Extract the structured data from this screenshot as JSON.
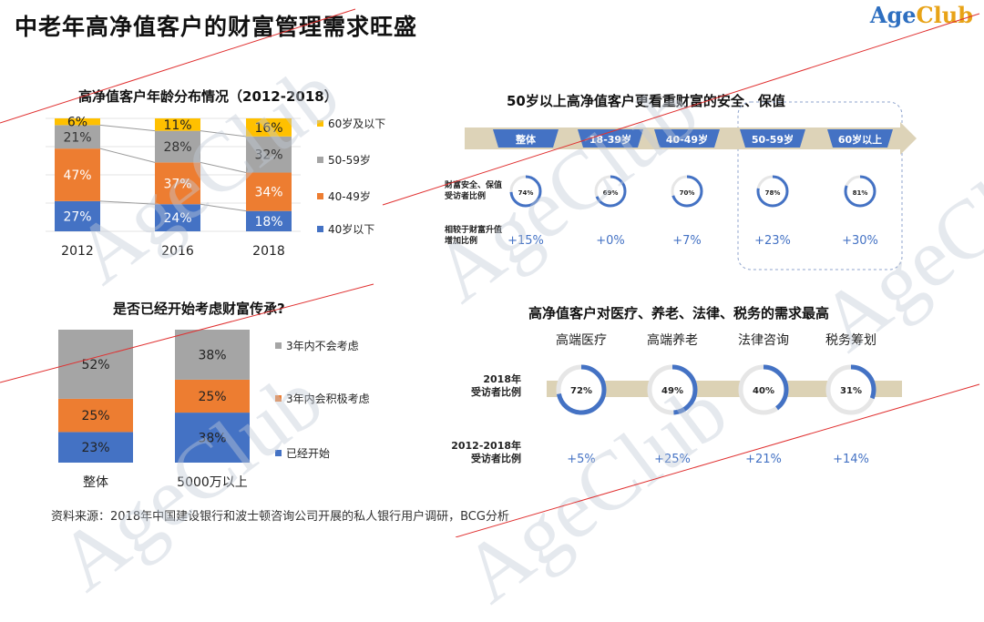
{
  "page": {
    "title": "中老年高净值客户的财富管理需求旺盛",
    "logo_main": "Age",
    "logo_accent": "Club",
    "watermark": "AgeClub",
    "source": "资料来源：2018年中国建设银行和波士顿咨询公司开展的私人银行用户调研，BCG分析"
  },
  "colors": {
    "blue": "#4472c4",
    "orange": "#ed7d31",
    "gray": "#a5a5a5",
    "yellow": "#ffc000",
    "red_line": "#e03030",
    "arrow": "#ddd3b8"
  },
  "chart_data": [
    {
      "id": "age-distribution",
      "type": "bar",
      "stacked": true,
      "title": "高净值客户年龄分布情况（2012-2018）",
      "categories": [
        "2012",
        "2016",
        "2018"
      ],
      "series": [
        {
          "name": "40岁以下",
          "color": "#4472c4",
          "values": [
            27,
            24,
            18
          ],
          "labels": [
            "27%",
            "24%",
            "18%"
          ]
        },
        {
          "name": "40-49岁",
          "color": "#ed7d31",
          "values": [
            47,
            37,
            34
          ],
          "labels": [
            "47%",
            "37%",
            "34%"
          ]
        },
        {
          "name": "50-59岁",
          "color": "#a5a5a5",
          "values": [
            21,
            28,
            32
          ],
          "labels": [
            "21%",
            "28%",
            "32%"
          ]
        },
        {
          "name": "60岁及以下",
          "color": "#ffc000",
          "values": [
            6,
            11,
            16
          ],
          "labels": [
            "6%",
            "11%",
            "16%"
          ]
        }
      ],
      "legend": "right",
      "grid": true
    },
    {
      "id": "inheritance",
      "type": "bar",
      "stacked": true,
      "title": "是否已经开始考虑财富传承?",
      "categories": [
        "整体",
        "5000万以上"
      ],
      "series": [
        {
          "name": "已经开始",
          "color": "#4472c4",
          "values": [
            23,
            38
          ],
          "labels": [
            "23%",
            "38%"
          ]
        },
        {
          "name": "3年内会积极考虑",
          "color": "#ed7d31",
          "values": [
            25,
            25
          ],
          "labels": [
            "25%",
            "25%"
          ]
        },
        {
          "name": "3年内不会考虑",
          "color": "#a5a5a5",
          "values": [
            52,
            38
          ],
          "labels": [
            "52%",
            "38%"
          ]
        }
      ],
      "legend": "right"
    },
    {
      "id": "security-by-age",
      "type": "pie",
      "title": "50岁以上高净值客户更看重财富的安全、保值",
      "categories": [
        "整体",
        "18-39岁",
        "40-49岁",
        "50-59岁",
        "60岁以上"
      ],
      "row_label": "财富安全、保值受访者比例",
      "values": [
        74,
        69,
        70,
        78,
        81
      ],
      "value_labels": [
        "74%",
        "69%",
        "70%",
        "78%",
        "81%"
      ],
      "diff_label": "相较于财富升值增加比例",
      "diffs": [
        "+15%",
        "+0%",
        "+7%",
        "+23%",
        "+30%"
      ],
      "highlight": [
        "50-59岁",
        "60岁以上"
      ]
    },
    {
      "id": "service-demand",
      "type": "pie",
      "title": "高净值客户对医疗、养老、法律、税务的需求最高",
      "categories": [
        "高端医疗",
        "高端养老",
        "法律咨询",
        "税务筹划"
      ],
      "row_label": "2018年受访者比例",
      "values": [
        72,
        49,
        40,
        31
      ],
      "value_labels": [
        "72%",
        "49%",
        "40%",
        "31%"
      ],
      "diff_label": "2012-2018年受访者比例",
      "diffs": [
        "+5%",
        "+25%",
        "+21%",
        "+14%"
      ]
    }
  ]
}
